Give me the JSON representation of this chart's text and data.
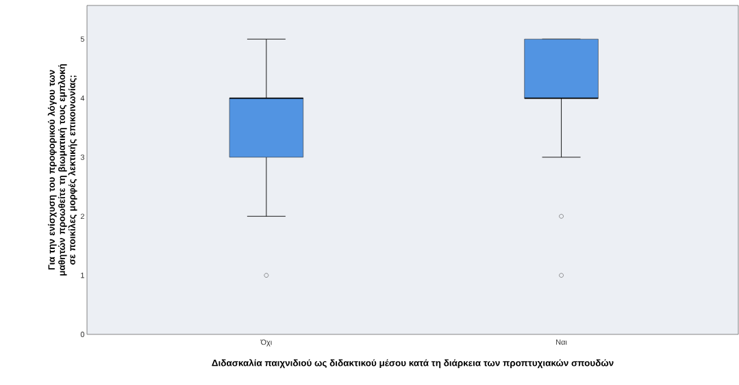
{
  "chart_data": {
    "type": "box",
    "xlabel": "Διδασκαλία παιχνιδιού ως διδακτικού μέσου κατά τη διάρκεια των προπτυχιακών σπουδών",
    "ylabel": "Για την ενίσχυση του προφορικού λόγου των μαθητών προωθείτε τη βιωματική τους εμπλοκή σε ποικίλες μορφές λεκτικής επικοινωνίας;",
    "categories": [
      "Όχι",
      "Ναι"
    ],
    "color": "#5294e2",
    "boxes": [
      {
        "low": 2,
        "q1": 3,
        "median": 4,
        "q3": 4,
        "high": 5,
        "outliers": [
          1
        ]
      },
      {
        "low": 3,
        "q1": 4,
        "median": 4,
        "q3": 5,
        "high": 5,
        "outliers": [
          2,
          1
        ]
      }
    ],
    "ylim": [
      0,
      5.57
    ],
    "yticks": [
      0,
      1,
      2,
      3,
      4,
      5
    ]
  }
}
